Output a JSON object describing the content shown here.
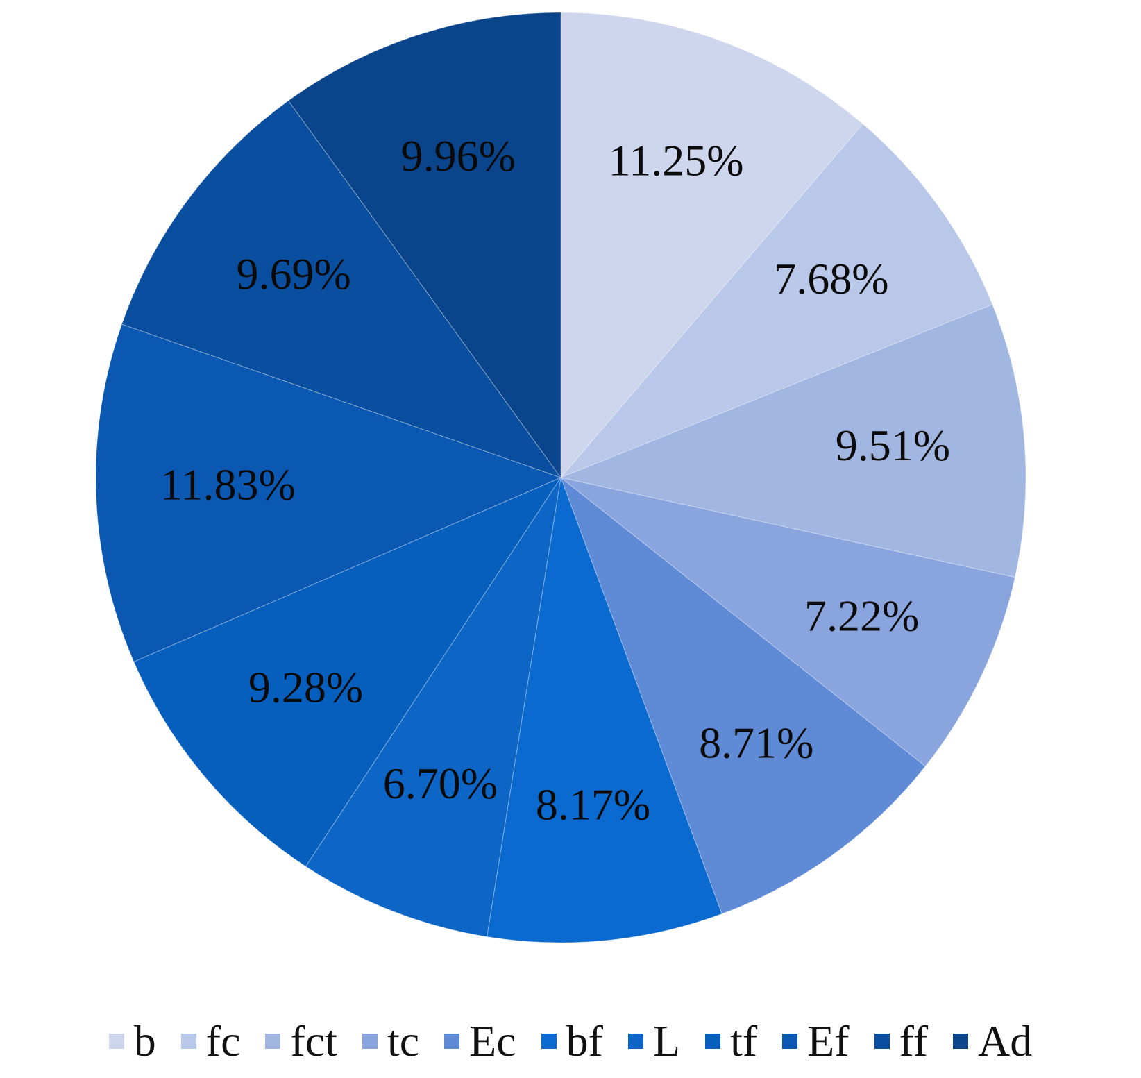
{
  "chart_data": {
    "type": "pie",
    "title": "",
    "start_angle_deg": 0,
    "direction": "clockwise",
    "legend_position": "bottom",
    "slices": [
      {
        "name": "b",
        "value": 11.25,
        "label": "11.25%",
        "color": "#cdd6ec"
      },
      {
        "name": "fc",
        "value": 7.68,
        "label": "7.68%",
        "color": "#b9c7e8"
      },
      {
        "name": "fct",
        "value": 9.51,
        "label": "9.51%",
        "color": "#a2b6e2"
      },
      {
        "name": "tc",
        "value": 7.22,
        "label": "7.22%",
        "color": "#8aa5de"
      },
      {
        "name": "Ec",
        "value": 8.71,
        "label": "8.71%",
        "color": "#5f8ad6"
      },
      {
        "name": "bf",
        "value": 8.17,
        "label": "8.17%",
        "color": "#0a6ad0"
      },
      {
        "name": "L",
        "value": 6.7,
        "label": "6.70%",
        "color": "#0d65c6"
      },
      {
        "name": "tf",
        "value": 9.28,
        "label": "9.28%",
        "color": "#075fbd"
      },
      {
        "name": "Ef",
        "value": 11.83,
        "label": "11.83%",
        "color": "#0a58b2"
      },
      {
        "name": "ff",
        "value": 9.69,
        "label": "9.69%",
        "color": "#0a4f9f"
      },
      {
        "name": "Ad",
        "value": 9.96,
        "label": "9.96%",
        "color": "#0a448a"
      }
    ]
  }
}
